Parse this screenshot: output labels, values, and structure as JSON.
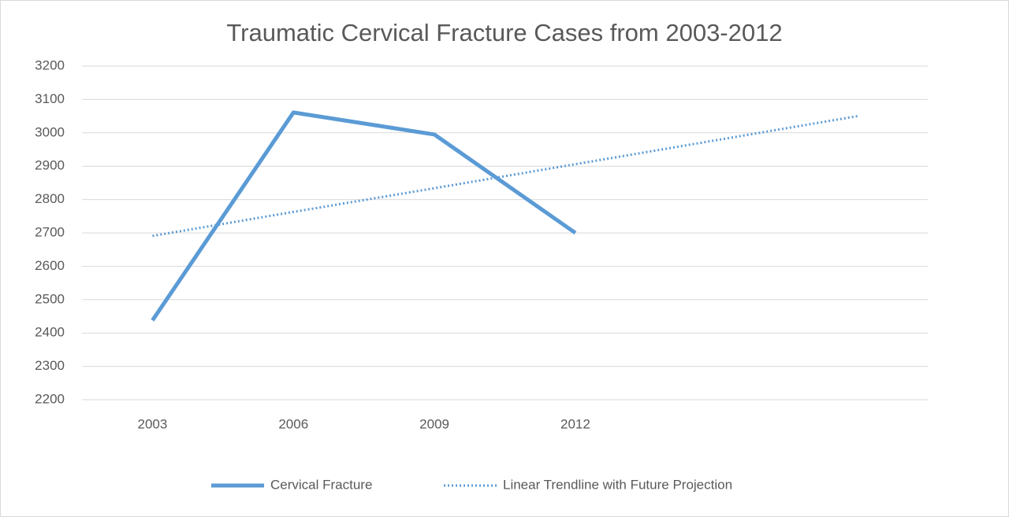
{
  "chart_data": {
    "type": "line",
    "title": "Traumatic Cervical Fracture Cases from 2003-2012",
    "categories": [
      "2003",
      "2006",
      "2009",
      "2012",
      null,
      null
    ],
    "series": [
      {
        "name": "Cervical Fracture",
        "color": "#5b9bd5",
        "style": "solid",
        "values": [
          2438,
          3061,
          2995,
          2700,
          null,
          null
        ]
      },
      {
        "name": "Linear Trendline with Future Projection",
        "color": "#5b9bd5",
        "style": "dotted",
        "values": [
          2691,
          2763,
          2834,
          2906,
          2978,
          3050
        ]
      }
    ],
    "ylim": [
      2200,
      3200
    ],
    "yticks": [
      2200,
      2300,
      2400,
      2500,
      2600,
      2700,
      2800,
      2900,
      3000,
      3100,
      3200
    ],
    "grid": true,
    "legend": "bottom"
  }
}
